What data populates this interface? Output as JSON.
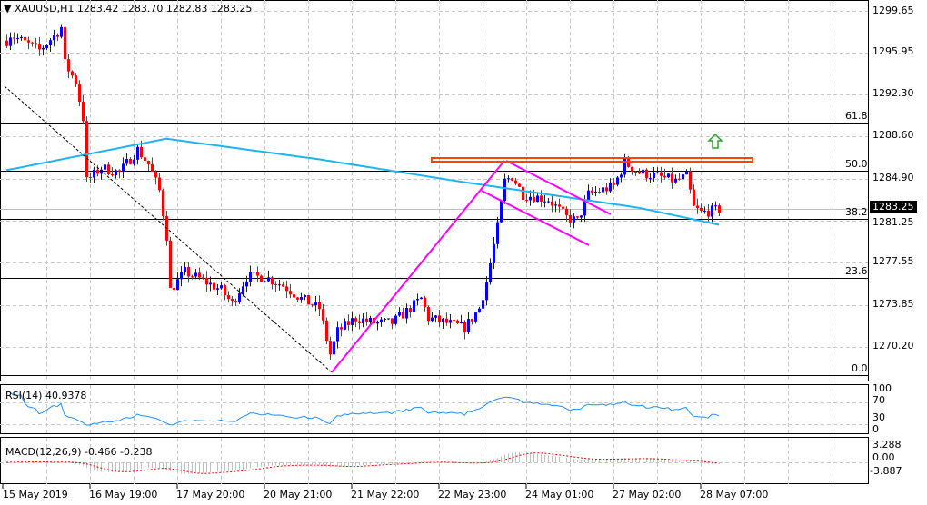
{
  "header": {
    "symbol": "XAUUSD,H1",
    "open": "1283.42",
    "high": "1283.70",
    "low": "1282.83",
    "close": "1283.25"
  },
  "current_price": "1283.25",
  "rsi": {
    "label": "RSI(14) 40.9378",
    "levels": [
      "100",
      "70",
      "30",
      "0"
    ]
  },
  "macd": {
    "label": "MACD(12,26,9) -0.466 -0.238",
    "levels": [
      "3.288",
      "0.00",
      "-3.887"
    ]
  },
  "price_labels": [
    "1299.65",
    "1295.95",
    "1292.30",
    "1288.60",
    "1284.90",
    "1281.25",
    "1277.55",
    "1273.85",
    "1270.20"
  ],
  "fib_labels": [
    "61.8",
    "50.0",
    "38.2",
    "23.6",
    "0.0"
  ],
  "time_labels": [
    "15 May 2019",
    "16 May 19:00",
    "17 May 20:00",
    "20 May 21:00",
    "21 May 22:00",
    "22 May 23:00",
    "24 May 01:00",
    "27 May 02:00",
    "28 May 07:00"
  ],
  "colors": {
    "up": "#0000ff",
    "down": "#ff0000",
    "ma": "#1eb4f0",
    "rsi": "#1e90ff",
    "macd_signal": "#ff0000",
    "histogram": "#c0c0c0",
    "fib": "#000000",
    "pattern": "#ff00ff",
    "resistance": "#ff4500",
    "arrow": "#2ca02c"
  },
  "chart_data": {
    "type": "candlestick",
    "symbol": "XAUUSD",
    "timeframe": "H1",
    "ylim": [
      1269.5,
      1301
    ],
    "fib_levels": {
      "61.8": 1290.43,
      "50.0": 1286.46,
      "38.2": 1282.48,
      "23.6": 1277.61,
      "0.0": 1269.59
    },
    "price_path": [
      [
        0,
        1297.2
      ],
      [
        1,
        1297.7
      ],
      [
        4,
        1297.2
      ],
      [
        9,
        1296.4
      ],
      [
        14,
        1297.9
      ],
      [
        15,
        1298.3
      ],
      [
        16,
        1295.3
      ],
      [
        19,
        1293.8
      ],
      [
        21,
        1290.8
      ],
      [
        22,
        1285.6
      ],
      [
        26,
        1286.7
      ],
      [
        31,
        1286.3
      ],
      [
        36,
        1288.2
      ],
      [
        39,
        1287.0
      ],
      [
        42,
        1284.8
      ],
      [
        44,
        1281.1
      ],
      [
        45,
        1276.6
      ],
      [
        49,
        1278.1
      ],
      [
        54,
        1277.4
      ],
      [
        59,
        1276.6
      ],
      [
        62,
        1275.5
      ],
      [
        66,
        1277.7
      ],
      [
        71,
        1277.7
      ],
      [
        76,
        1277.0
      ],
      [
        81,
        1275.9
      ],
      [
        86,
        1275.1
      ],
      [
        89,
        1271.3
      ],
      [
        91,
        1273.2
      ],
      [
        96,
        1274.3
      ],
      [
        101,
        1273.9
      ],
      [
        106,
        1273.9
      ],
      [
        111,
        1275.1
      ],
      [
        114,
        1275.9
      ],
      [
        116,
        1274.3
      ],
      [
        121,
        1273.9
      ],
      [
        126,
        1273.5
      ],
      [
        130,
        1275.1
      ],
      [
        132,
        1277.3
      ],
      [
        135,
        1281.8
      ],
      [
        137,
        1285.6
      ],
      [
        139,
        1286.0
      ],
      [
        142,
        1284.5
      ],
      [
        149,
        1284.1
      ],
      [
        154,
        1282.6
      ],
      [
        157,
        1282.3
      ],
      [
        160,
        1284.5
      ],
      [
        164,
        1284.9
      ],
      [
        167,
        1285.2
      ],
      [
        170,
        1287.1
      ],
      [
        174,
        1286.3
      ],
      [
        179,
        1286.0
      ],
      [
        184,
        1285.6
      ],
      [
        187,
        1286.0
      ],
      [
        189,
        1283.4
      ],
      [
        191,
        1283.0
      ],
      [
        196,
        1283.25
      ]
    ],
    "moving_average": [
      [
        0,
        1286.5
      ],
      [
        44,
        1289.1
      ],
      [
        86,
        1287.4
      ],
      [
        124,
        1285.6
      ],
      [
        149,
        1284.5
      ],
      [
        174,
        1283.4
      ],
      [
        196,
        1282.0
      ]
    ],
    "rsi_last": 40.9378,
    "macd_last": -0.466,
    "signal_last": -0.238
  }
}
